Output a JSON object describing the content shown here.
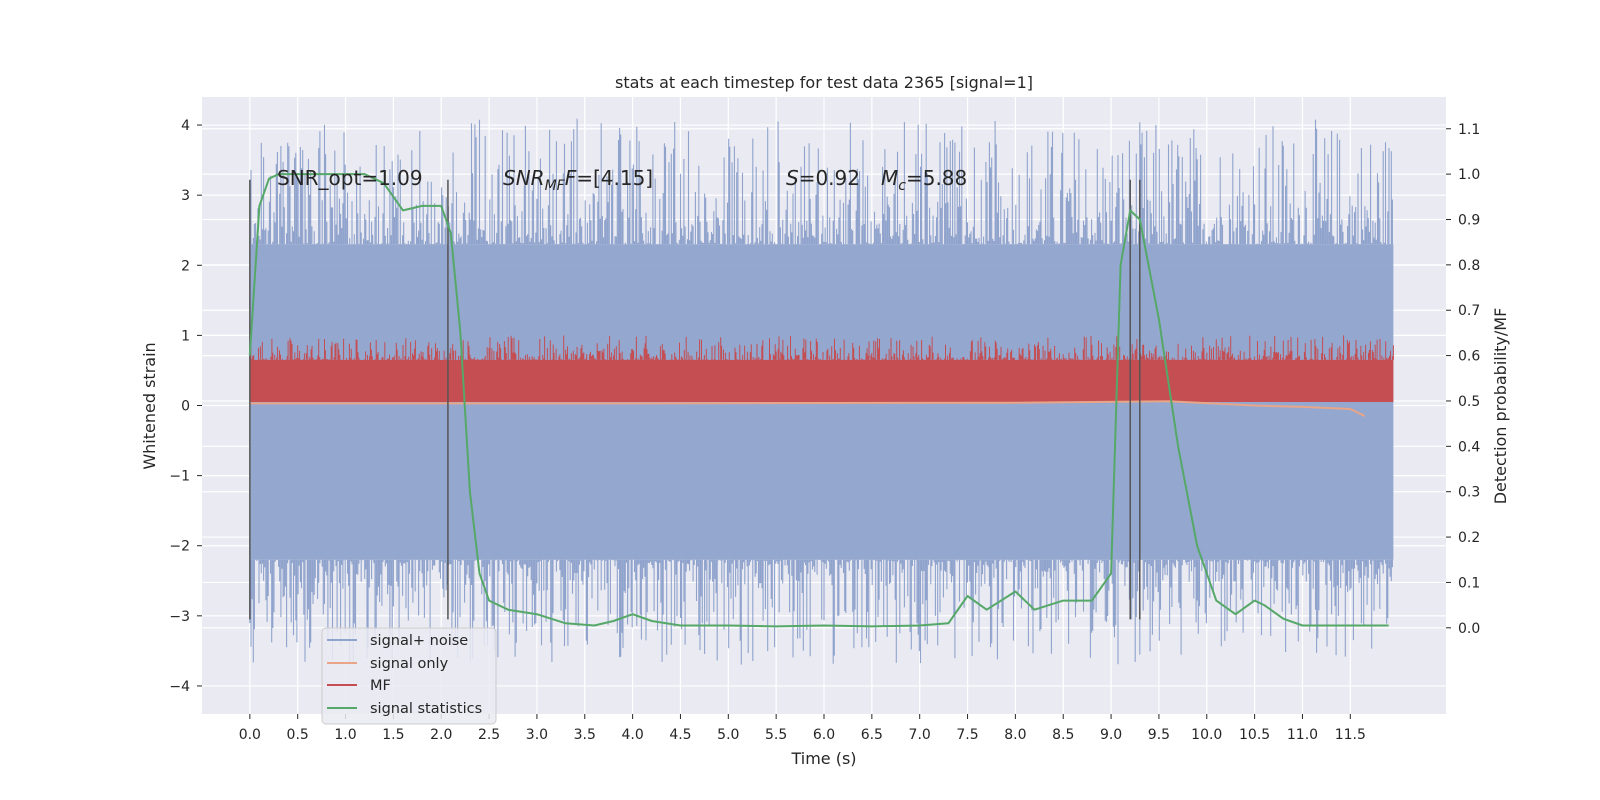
{
  "chart_data": {
    "type": "line",
    "title": "stats at each timestep for test data 2365 [signal=1]",
    "xlabel": "Time (s)",
    "ylabel": "Whitened strain",
    "y2label": "Detection probability/MF",
    "xlim": [
      -0.5,
      12.5
    ],
    "ylim": [
      -4.4,
      4.4
    ],
    "y2lim": [
      -0.19,
      1.17
    ],
    "x_ticks": [
      "0.0",
      "0.5",
      "1.0",
      "1.5",
      "2.0",
      "2.5",
      "3.0",
      "3.5",
      "4.0",
      "4.5",
      "5.0",
      "5.5",
      "6.0",
      "6.5",
      "7.0",
      "7.5",
      "8.0",
      "8.5",
      "9.0",
      "9.5",
      "10.0",
      "10.5",
      "11.0",
      "11.5"
    ],
    "y_ticks": [
      "4",
      "3",
      "2",
      "1",
      "0",
      "−1",
      "−2",
      "−3",
      "−4"
    ],
    "y2_ticks": [
      "1.1",
      "1.0",
      "0.9",
      "0.8",
      "0.7",
      "0.6",
      "0.5",
      "0.4",
      "0.3",
      "0.2",
      "0.1",
      "0.0"
    ],
    "grid": true,
    "legend_position": "lower-left",
    "annotations": {
      "snr_opt": "SNR_opt=1.09",
      "snr_mf_main": "SNR",
      "snr_mf_sub": "MF",
      "snr_mf_value": "=[4.15]",
      "s_sym": "S",
      "s_value": "=0.92",
      "mc_sym": "M",
      "mc_sub": "c",
      "mc_value": "=5.88"
    },
    "vertical_markers": [
      0.0,
      2.07,
      9.2,
      9.3
    ],
    "series": [
      {
        "name": "signal+ noise",
        "color": "#8fa3cc",
        "envelope": {
          "x": [
            0.0,
            11.95
          ],
          "upper": [
            2.3,
            2.3
          ],
          "lower": [
            -2.2,
            -2.2
          ]
        }
      },
      {
        "name": "signal only",
        "color": "#e8a587",
        "x": [
          0.0,
          4.0,
          8.0,
          9.6,
          10.5,
          11.0,
          11.5,
          11.65
        ],
        "y": [
          0.03,
          0.03,
          0.04,
          0.06,
          0.0,
          -0.02,
          -0.05,
          -0.15
        ]
      },
      {
        "name": "MF",
        "color": "#c44e52",
        "band": {
          "lower": 0.05,
          "upper": 0.65
        }
      },
      {
        "name": "signal statistics",
        "color": "#55a868",
        "x": [
          0.0,
          0.1,
          0.2,
          0.3,
          0.5,
          0.8,
          1.0,
          1.2,
          1.4,
          1.6,
          1.8,
          2.0,
          2.1,
          2.2,
          2.3,
          2.4,
          2.5,
          2.7,
          3.0,
          3.3,
          3.6,
          3.8,
          4.0,
          4.2,
          4.5,
          5.0,
          5.5,
          6.0,
          6.5,
          7.0,
          7.3,
          7.5,
          7.7,
          8.0,
          8.2,
          8.5,
          8.8,
          9.0,
          9.1,
          9.2,
          9.3,
          9.5,
          9.7,
          9.9,
          10.1,
          10.3,
          10.5,
          10.6,
          10.8,
          11.0,
          11.5,
          11.9
        ],
        "y": [
          0.6,
          0.93,
          0.99,
          1.0,
          1.0,
          1.0,
          1.0,
          1.0,
          0.98,
          0.92,
          0.93,
          0.93,
          0.87,
          0.65,
          0.3,
          0.12,
          0.06,
          0.04,
          0.03,
          0.01,
          0.005,
          0.015,
          0.03,
          0.015,
          0.005,
          0.005,
          0.003,
          0.005,
          0.003,
          0.005,
          0.01,
          0.07,
          0.04,
          0.08,
          0.04,
          0.06,
          0.06,
          0.12,
          0.8,
          0.92,
          0.9,
          0.68,
          0.4,
          0.18,
          0.06,
          0.03,
          0.06,
          0.05,
          0.02,
          0.005,
          0.005,
          0.005
        ]
      }
    ]
  }
}
